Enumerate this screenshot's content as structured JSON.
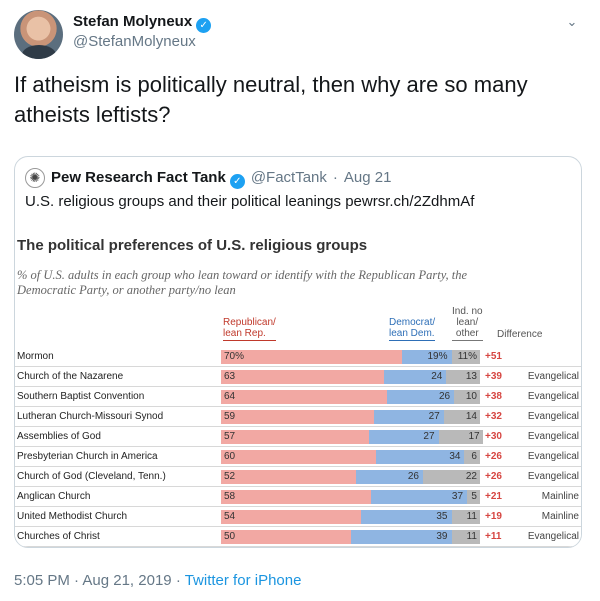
{
  "tweet": {
    "author_name": "Stefan Molyneux",
    "author_handle": "@StefanMolyneux",
    "text": "If atheism is politically neutral, then why are so many atheists leftists?",
    "time": "5:05 PM",
    "date": "Aug 21, 2019",
    "source": "Twitter for iPhone",
    "separator": "·"
  },
  "quoted": {
    "author_name": "Pew Research Fact Tank",
    "author_handle": "@FactTank",
    "date": "Aug 21",
    "text": "U.S. religious groups and their political leanings",
    "link": "pewrsr.ch/2ZdhmAf"
  },
  "colors": {
    "republican": "#f2a8a3",
    "democrat": "#8fb5e2",
    "independent": "#b9b9b9",
    "difference": "#d64541",
    "link": "#1b95e0"
  },
  "icons": {
    "verified": "verified-badge-icon",
    "caret": "chevron-down-icon",
    "pew_logo": "pew-sun-icon"
  },
  "chart_data": {
    "type": "bar",
    "stacked": true,
    "orientation": "horizontal",
    "title": "The political preferences of U.S. religious groups",
    "subtitle": "% of U.S. adults in each group who lean toward or identify with the Republican Party, the Democratic Party, or another party/no lean",
    "column_headers": {
      "rep": [
        "Republican/",
        "lean Rep."
      ],
      "dem": [
        "Democrat/",
        "lean Dem."
      ],
      "ind": [
        "Ind. no",
        "lean/",
        "other"
      ],
      "diff": "Difference"
    },
    "categories": [
      "Mormon",
      "Church of the Nazarene",
      "Southern Baptist Convention",
      "Lutheran Church-Missouri Synod",
      "Assemblies of God",
      "Presbyterian Church in America",
      "Church of God (Cleveland, Tenn.)",
      "Anglican Church",
      "United Methodist Church",
      "Churches of Christ"
    ],
    "series": [
      {
        "name": "Republican/lean Rep.",
        "values": [
          70,
          63,
          64,
          59,
          57,
          60,
          52,
          58,
          54,
          50
        ]
      },
      {
        "name": "Democrat/lean Dem.",
        "values": [
          19,
          24,
          26,
          27,
          27,
          34,
          26,
          37,
          35,
          39
        ]
      },
      {
        "name": "Ind. no lean/other",
        "values": [
          11,
          13,
          10,
          14,
          17,
          6,
          22,
          5,
          11,
          11
        ]
      }
    ],
    "first_value_suffix": "%",
    "difference": [
      "+51",
      "+39",
      "+38",
      "+32",
      "+30",
      "+26",
      "+26",
      "+21",
      "+19",
      "+11"
    ],
    "tradition": [
      "",
      "Evangelical",
      "Evangelical",
      "Evangelical",
      "Evangelical",
      "Evangelical",
      "Evangelical",
      "Mainline",
      "Mainline",
      "Evangelical"
    ],
    "xlim": [
      0,
      100
    ]
  }
}
